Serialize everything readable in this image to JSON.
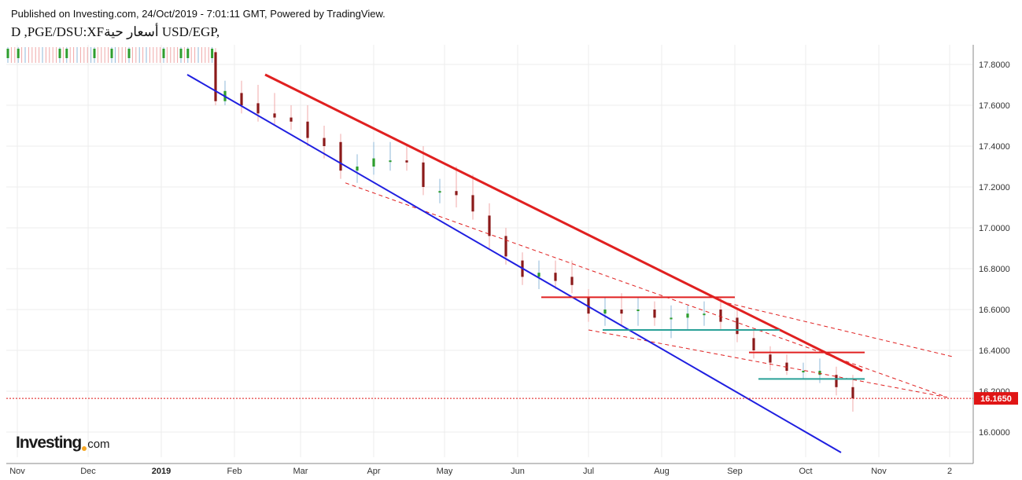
{
  "header": {
    "published": "Published on Investing.com, 24/Oct/2019 - 7:01:11 GMT, Powered by TradingView.",
    "symbol_line": "D ,PGE/DSU:XFأسعار حية USD/EGP,"
  },
  "branding": {
    "logo_main": "Investing",
    "logo_tld": "com"
  },
  "colors": {
    "up": "#2e9e2e",
    "down": "#8b1a1a",
    "up_wick": "#8fb8d8",
    "down_wick": "#f0a8a8",
    "red_line": "#e02020",
    "blue_line": "#1f1fe0",
    "teal_line": "#2aa198",
    "price_tag": "#e01515"
  },
  "chart_data": {
    "type": "candlestick",
    "title": "USD/EGP, D",
    "ylim": [
      15.92,
      17.86
    ],
    "y_ticks": [
      "17.8000",
      "17.6000",
      "17.4000",
      "17.2000",
      "17.0000",
      "16.8000",
      "16.6000",
      "16.4000",
      "16.2000",
      "16.0000"
    ],
    "y_tick_values": [
      17.8,
      17.6,
      17.4,
      17.2,
      17.0,
      16.8,
      16.6,
      16.4,
      16.2,
      16.0
    ],
    "x_ticks": [
      {
        "label": "Nov",
        "date": "2018-11-01",
        "bold": false
      },
      {
        "label": "Dec",
        "date": "2018-12-01",
        "bold": false
      },
      {
        "label": "2019",
        "date": "2019-01-01",
        "bold": true
      },
      {
        "label": "Feb",
        "date": "2019-02-01",
        "bold": false
      },
      {
        "label": "Mar",
        "date": "2019-03-01",
        "bold": false
      },
      {
        "label": "Apr",
        "date": "2019-04-01",
        "bold": false
      },
      {
        "label": "May",
        "date": "2019-05-01",
        "bold": false
      },
      {
        "label": "Jun",
        "date": "2019-06-01",
        "bold": false
      },
      {
        "label": "Jul",
        "date": "2019-07-01",
        "bold": false
      },
      {
        "label": "Aug",
        "date": "2019-08-01",
        "bold": false
      },
      {
        "label": "Sep",
        "date": "2019-09-01",
        "bold": false
      },
      {
        "label": "Oct",
        "date": "2019-10-01",
        "bold": false
      },
      {
        "label": "Nov",
        "date": "2019-11-01",
        "bold": false
      },
      {
        "label": "2",
        "date": "2019-12-01",
        "bold": false
      }
    ],
    "last_price": "16.1650",
    "last_price_value": 16.165,
    "candles": [
      {
        "date": "2019-01-24",
        "o": 17.86,
        "h": 17.88,
        "l": 17.6,
        "c": 17.62
      },
      {
        "date": "2019-01-28",
        "o": 17.62,
        "h": 17.72,
        "l": 17.6,
        "c": 17.67
      },
      {
        "date": "2019-02-04",
        "o": 17.66,
        "h": 17.72,
        "l": 17.56,
        "c": 17.6
      },
      {
        "date": "2019-02-11",
        "o": 17.61,
        "h": 17.7,
        "l": 17.52,
        "c": 17.56
      },
      {
        "date": "2019-02-18",
        "o": 17.56,
        "h": 17.66,
        "l": 17.5,
        "c": 17.54
      },
      {
        "date": "2019-02-25",
        "o": 17.54,
        "h": 17.6,
        "l": 17.48,
        "c": 17.52
      },
      {
        "date": "2019-03-04",
        "o": 17.52,
        "h": 17.6,
        "l": 17.4,
        "c": 17.44
      },
      {
        "date": "2019-03-11",
        "o": 17.44,
        "h": 17.5,
        "l": 17.34,
        "c": 17.4
      },
      {
        "date": "2019-03-18",
        "o": 17.42,
        "h": 17.46,
        "l": 17.24,
        "c": 17.28
      },
      {
        "date": "2019-03-25",
        "o": 17.28,
        "h": 17.36,
        "l": 17.22,
        "c": 17.3
      },
      {
        "date": "2019-04-01",
        "o": 17.3,
        "h": 17.42,
        "l": 17.26,
        "c": 17.34
      },
      {
        "date": "2019-04-08",
        "o": 17.33,
        "h": 17.42,
        "l": 17.28,
        "c": 17.33
      },
      {
        "date": "2019-04-15",
        "o": 17.33,
        "h": 17.4,
        "l": 17.28,
        "c": 17.32
      },
      {
        "date": "2019-04-22",
        "o": 17.32,
        "h": 17.4,
        "l": 17.16,
        "c": 17.2
      },
      {
        "date": "2019-04-29",
        "o": 17.18,
        "h": 17.24,
        "l": 17.12,
        "c": 17.18
      },
      {
        "date": "2019-05-06",
        "o": 17.18,
        "h": 17.3,
        "l": 17.1,
        "c": 17.16
      },
      {
        "date": "2019-05-13",
        "o": 17.16,
        "h": 17.26,
        "l": 17.04,
        "c": 17.08
      },
      {
        "date": "2019-05-20",
        "o": 17.06,
        "h": 17.12,
        "l": 16.9,
        "c": 16.96
      },
      {
        "date": "2019-05-27",
        "o": 16.96,
        "h": 17.0,
        "l": 16.82,
        "c": 16.86
      },
      {
        "date": "2019-06-03",
        "o": 16.84,
        "h": 16.88,
        "l": 16.72,
        "c": 16.76
      },
      {
        "date": "2019-06-10",
        "o": 16.76,
        "h": 16.84,
        "l": 16.7,
        "c": 16.78
      },
      {
        "date": "2019-06-17",
        "o": 16.78,
        "h": 16.84,
        "l": 16.7,
        "c": 16.74
      },
      {
        "date": "2019-06-24",
        "o": 16.76,
        "h": 16.84,
        "l": 16.68,
        "c": 16.72
      },
      {
        "date": "2019-07-01",
        "o": 16.66,
        "h": 16.7,
        "l": 16.54,
        "c": 16.58
      },
      {
        "date": "2019-07-08",
        "o": 16.58,
        "h": 16.66,
        "l": 16.52,
        "c": 16.6
      },
      {
        "date": "2019-07-15",
        "o": 16.6,
        "h": 16.68,
        "l": 16.52,
        "c": 16.58
      },
      {
        "date": "2019-07-22",
        "o": 16.6,
        "h": 16.66,
        "l": 16.52,
        "c": 16.6
      },
      {
        "date": "2019-07-29",
        "o": 16.6,
        "h": 16.64,
        "l": 16.52,
        "c": 16.56
      },
      {
        "date": "2019-08-05",
        "o": 16.56,
        "h": 16.62,
        "l": 16.46,
        "c": 16.56
      },
      {
        "date": "2019-08-12",
        "o": 16.56,
        "h": 16.62,
        "l": 16.5,
        "c": 16.58
      },
      {
        "date": "2019-08-19",
        "o": 16.58,
        "h": 16.64,
        "l": 16.52,
        "c": 16.58
      },
      {
        "date": "2019-08-26",
        "o": 16.6,
        "h": 16.66,
        "l": 16.5,
        "c": 16.54
      },
      {
        "date": "2019-09-02",
        "o": 16.56,
        "h": 16.6,
        "l": 16.44,
        "c": 16.48
      },
      {
        "date": "2019-09-09",
        "o": 16.46,
        "h": 16.5,
        "l": 16.36,
        "c": 16.4
      },
      {
        "date": "2019-09-16",
        "o": 16.38,
        "h": 16.42,
        "l": 16.3,
        "c": 16.34
      },
      {
        "date": "2019-09-23",
        "o": 16.34,
        "h": 16.38,
        "l": 16.28,
        "c": 16.3
      },
      {
        "date": "2019-09-30",
        "o": 16.3,
        "h": 16.34,
        "l": 16.26,
        "c": 16.3
      },
      {
        "date": "2019-10-07",
        "o": 16.28,
        "h": 16.36,
        "l": 16.24,
        "c": 16.3
      },
      {
        "date": "2019-10-14",
        "o": 16.28,
        "h": 16.32,
        "l": 16.18,
        "c": 16.22
      },
      {
        "date": "2019-10-21",
        "o": 16.22,
        "h": 16.28,
        "l": 16.1,
        "c": 16.165
      }
    ],
    "annotations": {
      "red_channel_top": {
        "from": {
          "date": "2019-02-14",
          "y": 17.75
        },
        "to": {
          "date": "2019-10-25",
          "y": 16.3
        }
      },
      "blue_channel_bottom": {
        "from": {
          "date": "2019-01-12",
          "y": 17.75
        },
        "to": {
          "date": "2019-10-16",
          "y": 15.9
        }
      },
      "red_dashed_upper": {
        "from": {
          "date": "2019-08-26",
          "y": 16.64
        },
        "to": {
          "date": "2019-12-02",
          "y": 16.37
        }
      },
      "red_dashed_mid": {
        "from": {
          "date": "2019-03-20",
          "y": 17.22
        },
        "to": {
          "date": "2019-11-30",
          "y": 16.17
        }
      },
      "red_dashed_lower": {
        "from": {
          "date": "2019-07-01",
          "y": 16.5
        },
        "to": {
          "date": "2019-11-30",
          "y": 16.17
        }
      },
      "red_hline_1": {
        "from": "2019-06-11",
        "to": "2019-09-01",
        "y": 16.66
      },
      "red_hline_2": {
        "from": "2019-09-07",
        "to": "2019-10-26",
        "y": 16.39
      },
      "teal_hline_1": {
        "from": "2019-07-07",
        "to": "2019-09-20",
        "y": 16.5
      },
      "teal_hline_2": {
        "from": "2019-09-11",
        "to": "2019-10-26",
        "y": 16.26
      }
    }
  }
}
